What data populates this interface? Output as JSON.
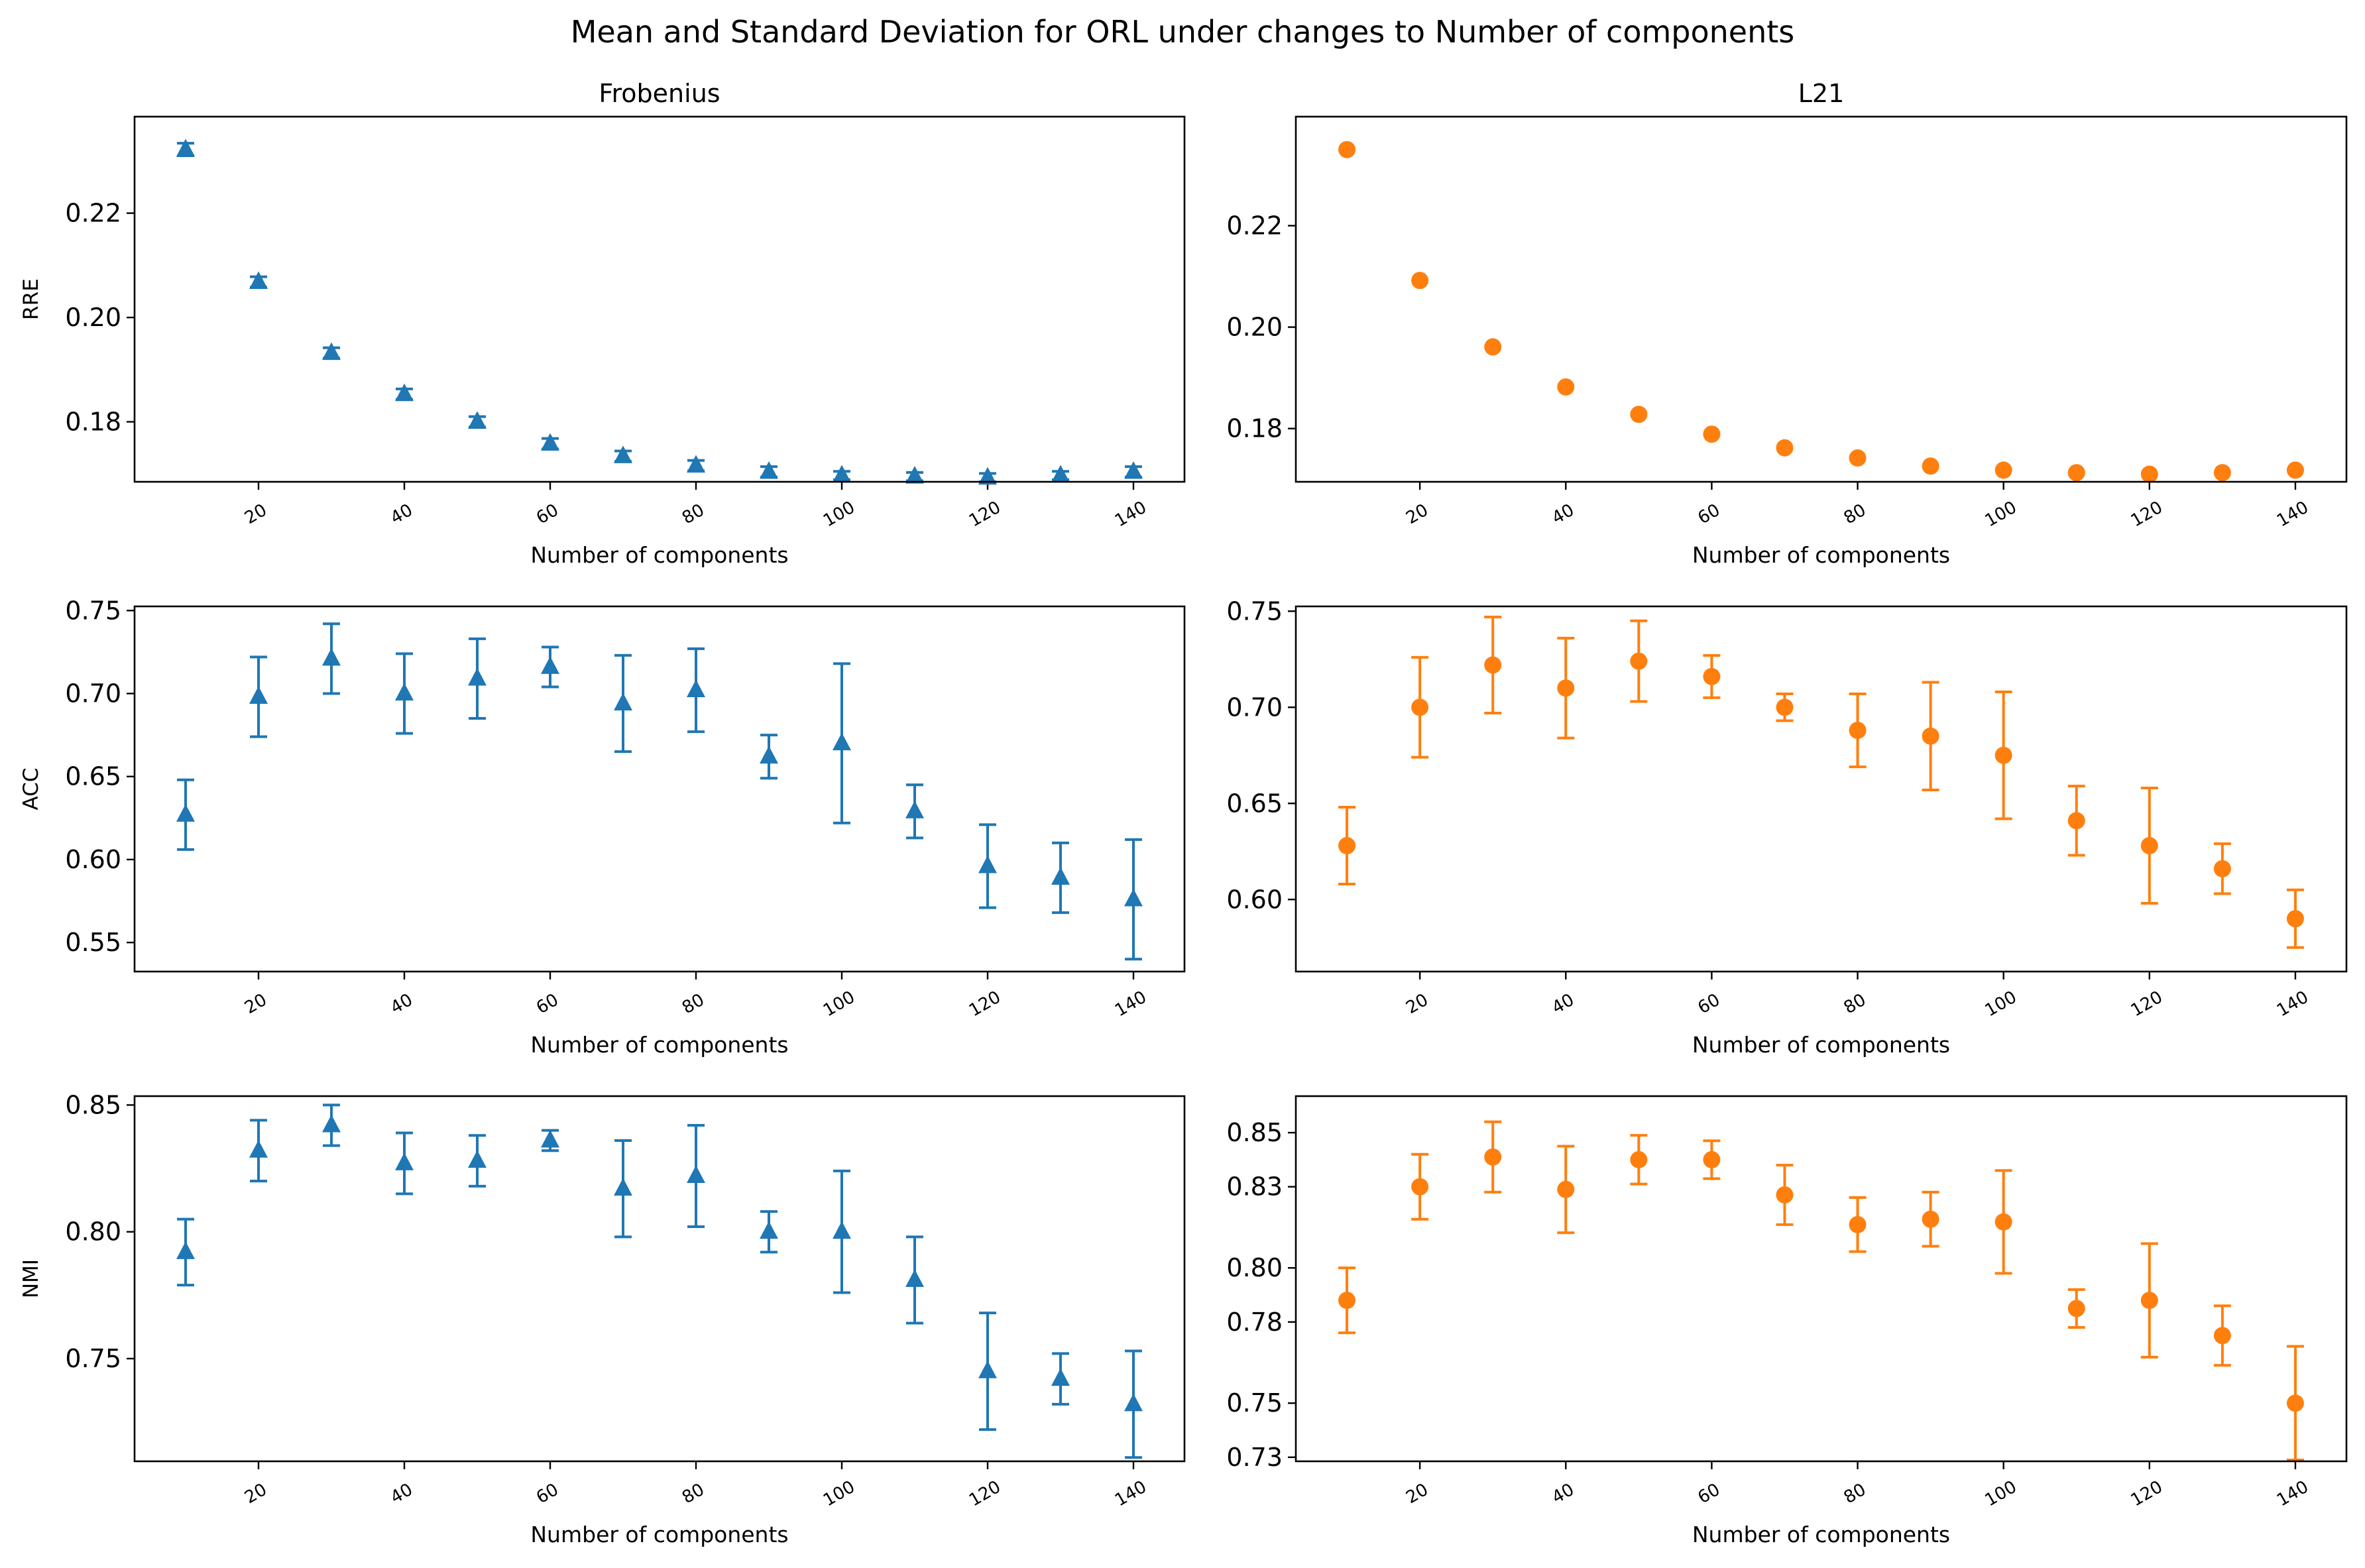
{
  "figure_title": "Mean and Standard Deviation for ORL under changes to Number of components",
  "colors": {
    "frobenius": "#1f77b4",
    "l21": "#ff7f0e"
  },
  "chart_data": [
    {
      "type": "scatter",
      "marker": "triangle",
      "color": "#1f77b4",
      "title": "Frobenius",
      "xlabel": "Number of components",
      "ylabel": "RRE",
      "xlim": [
        3,
        147
      ],
      "ylim": [
        0.1685,
        0.2385
      ],
      "xticks": [
        20,
        40,
        60,
        80,
        100,
        120,
        140
      ],
      "yticks": [
        0.18,
        0.2,
        0.22
      ],
      "ytick_labels": [
        "0.18",
        "0.20",
        "0.22"
      ],
      "x": [
        10,
        20,
        30,
        40,
        50,
        60,
        70,
        80,
        90,
        100,
        110,
        120,
        130,
        140
      ],
      "y": [
        0.2322,
        0.2068,
        0.1932,
        0.1853,
        0.18,
        0.1758,
        0.1734,
        0.1716,
        0.1704,
        0.1697,
        0.1695,
        0.1693,
        0.1697,
        0.1704
      ],
      "err": [
        0.0012,
        0.001,
        0.001,
        0.001,
        0.001,
        0.001,
        0.001,
        0.001,
        0.001,
        0.0008,
        0.0008,
        0.0008,
        0.0008,
        0.001
      ]
    },
    {
      "type": "scatter",
      "marker": "circle",
      "color": "#ff7f0e",
      "title": "L21",
      "xlabel": "Number of components",
      "ylabel": "",
      "xlim": [
        3,
        147
      ],
      "ylim": [
        0.1695,
        0.2415
      ],
      "xticks": [
        20,
        40,
        60,
        80,
        100,
        120,
        140
      ],
      "yticks": [
        0.18,
        0.2,
        0.22
      ],
      "ytick_labels": [
        "0.18",
        "0.20",
        "0.22"
      ],
      "x": [
        10,
        20,
        30,
        40,
        50,
        60,
        70,
        80,
        90,
        100,
        110,
        120,
        130,
        140
      ],
      "y": [
        0.235,
        0.2092,
        0.1961,
        0.1882,
        0.1828,
        0.1789,
        0.1762,
        0.1742,
        0.1726,
        0.1718,
        0.1713,
        0.171,
        0.1713,
        0.1718
      ],
      "err": [
        0,
        0,
        0,
        0,
        0,
        0,
        0,
        0,
        0,
        0,
        0,
        0,
        0,
        0
      ]
    },
    {
      "type": "errorbar",
      "marker": "triangle",
      "color": "#1f77b4",
      "title": "",
      "xlabel": "Number of components",
      "ylabel": "ACC",
      "xlim": [
        3,
        147
      ],
      "ylim": [
        0.5325,
        0.7525
      ],
      "xticks": [
        20,
        40,
        60,
        80,
        100,
        120,
        140
      ],
      "yticks": [
        0.55,
        0.6,
        0.65,
        0.7,
        0.75
      ],
      "ytick_labels": [
        "0.55",
        "0.60",
        "0.65",
        "0.70",
        "0.75"
      ],
      "x": [
        10,
        20,
        30,
        40,
        50,
        60,
        70,
        80,
        90,
        100,
        110,
        120,
        130,
        140
      ],
      "y": [
        0.627,
        0.698,
        0.721,
        0.7,
        0.709,
        0.716,
        0.694,
        0.702,
        0.662,
        0.67,
        0.629,
        0.596,
        0.589,
        0.576
      ],
      "err": [
        0.021,
        0.024,
        0.021,
        0.024,
        0.024,
        0.012,
        0.029,
        0.025,
        0.013,
        0.048,
        0.016,
        0.025,
        0.021,
        0.036
      ]
    },
    {
      "type": "errorbar",
      "marker": "circle",
      "color": "#ff7f0e",
      "title": "",
      "xlabel": "Number of components",
      "ylabel": "",
      "xlim": [
        3,
        147
      ],
      "ylim": [
        0.5625,
        0.7525
      ],
      "xticks": [
        20,
        40,
        60,
        80,
        100,
        120,
        140
      ],
      "yticks": [
        0.6,
        0.65,
        0.7,
        0.75
      ],
      "ytick_labels": [
        "0.60",
        "0.65",
        "0.70",
        "0.75"
      ],
      "x": [
        10,
        20,
        30,
        40,
        50,
        60,
        70,
        80,
        90,
        100,
        110,
        120,
        130,
        140
      ],
      "y": [
        0.628,
        0.7,
        0.722,
        0.71,
        0.724,
        0.716,
        0.7,
        0.688,
        0.685,
        0.675,
        0.641,
        0.628,
        0.616,
        0.59
      ],
      "err": [
        0.02,
        0.026,
        0.025,
        0.026,
        0.021,
        0.011,
        0.007,
        0.019,
        0.028,
        0.033,
        0.018,
        0.03,
        0.013,
        0.015
      ]
    },
    {
      "type": "errorbar",
      "marker": "triangle",
      "color": "#1f77b4",
      "title": "",
      "xlabel": "Number of components",
      "ylabel": "NMI",
      "xlim": [
        3,
        147
      ],
      "ylim": [
        0.7095,
        0.8535
      ],
      "xticks": [
        20,
        40,
        60,
        80,
        100,
        120,
        140
      ],
      "yticks": [
        0.75,
        0.8,
        0.85
      ],
      "ytick_labels": [
        "0.75",
        "0.80",
        "0.85"
      ],
      "x": [
        10,
        20,
        30,
        40,
        50,
        60,
        70,
        80,
        90,
        100,
        110,
        120,
        130,
        140
      ],
      "y": [
        0.792,
        0.832,
        0.842,
        0.827,
        0.828,
        0.836,
        0.817,
        0.822,
        0.8,
        0.8,
        0.781,
        0.745,
        0.742,
        0.732
      ],
      "err": [
        0.013,
        0.012,
        0.008,
        0.012,
        0.01,
        0.004,
        0.019,
        0.02,
        0.008,
        0.024,
        0.017,
        0.023,
        0.01,
        0.021
      ]
    },
    {
      "type": "errorbar",
      "marker": "circle",
      "color": "#ff7f0e",
      "title": "",
      "xlabel": "Number of components",
      "ylabel": "",
      "xlim": [
        3,
        147
      ],
      "ylim": [
        0.7285,
        0.8635
      ],
      "xticks": [
        20,
        40,
        60,
        80,
        100,
        120,
        140
      ],
      "yticks": [
        0.73,
        0.75,
        0.78,
        0.8,
        0.83,
        0.85
      ],
      "ytick_labels": [
        "0.73",
        "0.75",
        "0.78",
        "0.80",
        "0.83",
        "0.85"
      ],
      "x": [
        10,
        20,
        30,
        40,
        50,
        60,
        70,
        80,
        90,
        100,
        110,
        120,
        130,
        140
      ],
      "y": [
        0.788,
        0.83,
        0.841,
        0.829,
        0.84,
        0.84,
        0.827,
        0.816,
        0.818,
        0.817,
        0.785,
        0.788,
        0.775,
        0.75
      ],
      "err": [
        0.012,
        0.012,
        0.013,
        0.016,
        0.009,
        0.007,
        0.011,
        0.01,
        0.01,
        0.019,
        0.007,
        0.021,
        0.011,
        0.021
      ]
    }
  ]
}
